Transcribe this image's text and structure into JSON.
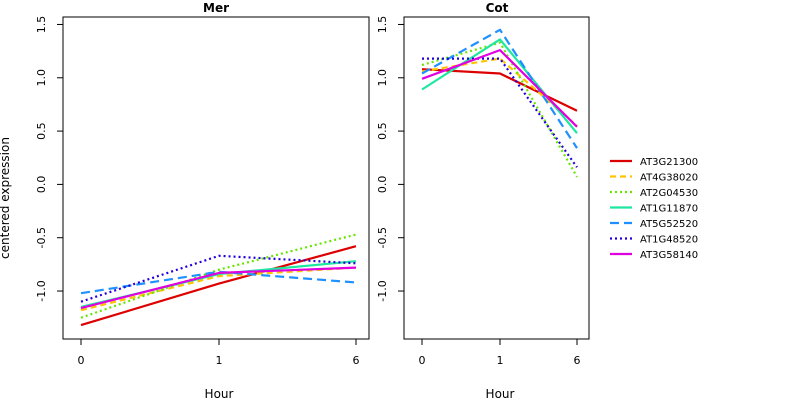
{
  "chart_data": {
    "type": "line",
    "ylabel": "centered expression",
    "x_ticks": [
      "0",
      "1",
      "6"
    ],
    "ylim": [
      -1.45,
      1.57
    ],
    "y_ticks": [
      -1.0,
      -0.5,
      0.0,
      0.5,
      1.0,
      1.5
    ],
    "y_tick_labels": [
      "-1.0",
      "-0.5",
      "0.0",
      "0.5",
      "1.0",
      "1.5"
    ],
    "panels": [
      {
        "title": "Mer",
        "xlabel": "Hour",
        "series": [
          {
            "name": "AT3G21300",
            "values": [
              -1.32,
              -0.93,
              -0.58
            ]
          },
          {
            "name": "AT4G38020",
            "values": [
              -1.18,
              -0.86,
              -0.78
            ]
          },
          {
            "name": "AT2G04530",
            "values": [
              -1.25,
              -0.8,
              -0.47
            ]
          },
          {
            "name": "AT1G11870",
            "values": [
              -1.15,
              -0.84,
              -0.72
            ]
          },
          {
            "name": "AT5G52520",
            "values": [
              -1.02,
              -0.82,
              -0.92
            ]
          },
          {
            "name": "AT1G48520",
            "values": [
              -1.1,
              -0.67,
              -0.74
            ]
          },
          {
            "name": "AT3G58140",
            "values": [
              -1.16,
              -0.83,
              -0.78
            ]
          }
        ]
      },
      {
        "title": "Cot",
        "xlabel": "Hour",
        "series": [
          {
            "name": "AT3G21300",
            "values": [
              1.08,
              1.04,
              0.69
            ]
          },
          {
            "name": "AT4G38020",
            "values": [
              1.06,
              1.18,
              0.55
            ]
          },
          {
            "name": "AT2G04530",
            "values": [
              1.12,
              1.33,
              0.07
            ]
          },
          {
            "name": "AT1G11870",
            "values": [
              0.89,
              1.36,
              0.48
            ]
          },
          {
            "name": "AT5G52520",
            "values": [
              1.04,
              1.45,
              0.34
            ]
          },
          {
            "name": "AT1G48520",
            "values": [
              1.18,
              1.18,
              0.16
            ]
          },
          {
            "name": "AT3G58140",
            "values": [
              0.99,
              1.26,
              0.54
            ]
          }
        ]
      }
    ],
    "legend": {
      "placement": "right",
      "entries": [
        {
          "name": "AT3G21300",
          "color": "#dd0000",
          "dash": "solid"
        },
        {
          "name": "AT4G38020",
          "color": "#ffc400",
          "dash": "dashed"
        },
        {
          "name": "AT2G04530",
          "color": "#66e600",
          "dash": "dotted"
        },
        {
          "name": "AT1G11870",
          "color": "#1ee8a0",
          "dash": "solid"
        },
        {
          "name": "AT5G52520",
          "color": "#1e90ff",
          "dash": "longdash"
        },
        {
          "name": "AT1G48520",
          "color": "#2200dd",
          "dash": "dotted"
        },
        {
          "name": "AT3G58140",
          "color": "#e000e0",
          "dash": "solid"
        }
      ]
    }
  }
}
